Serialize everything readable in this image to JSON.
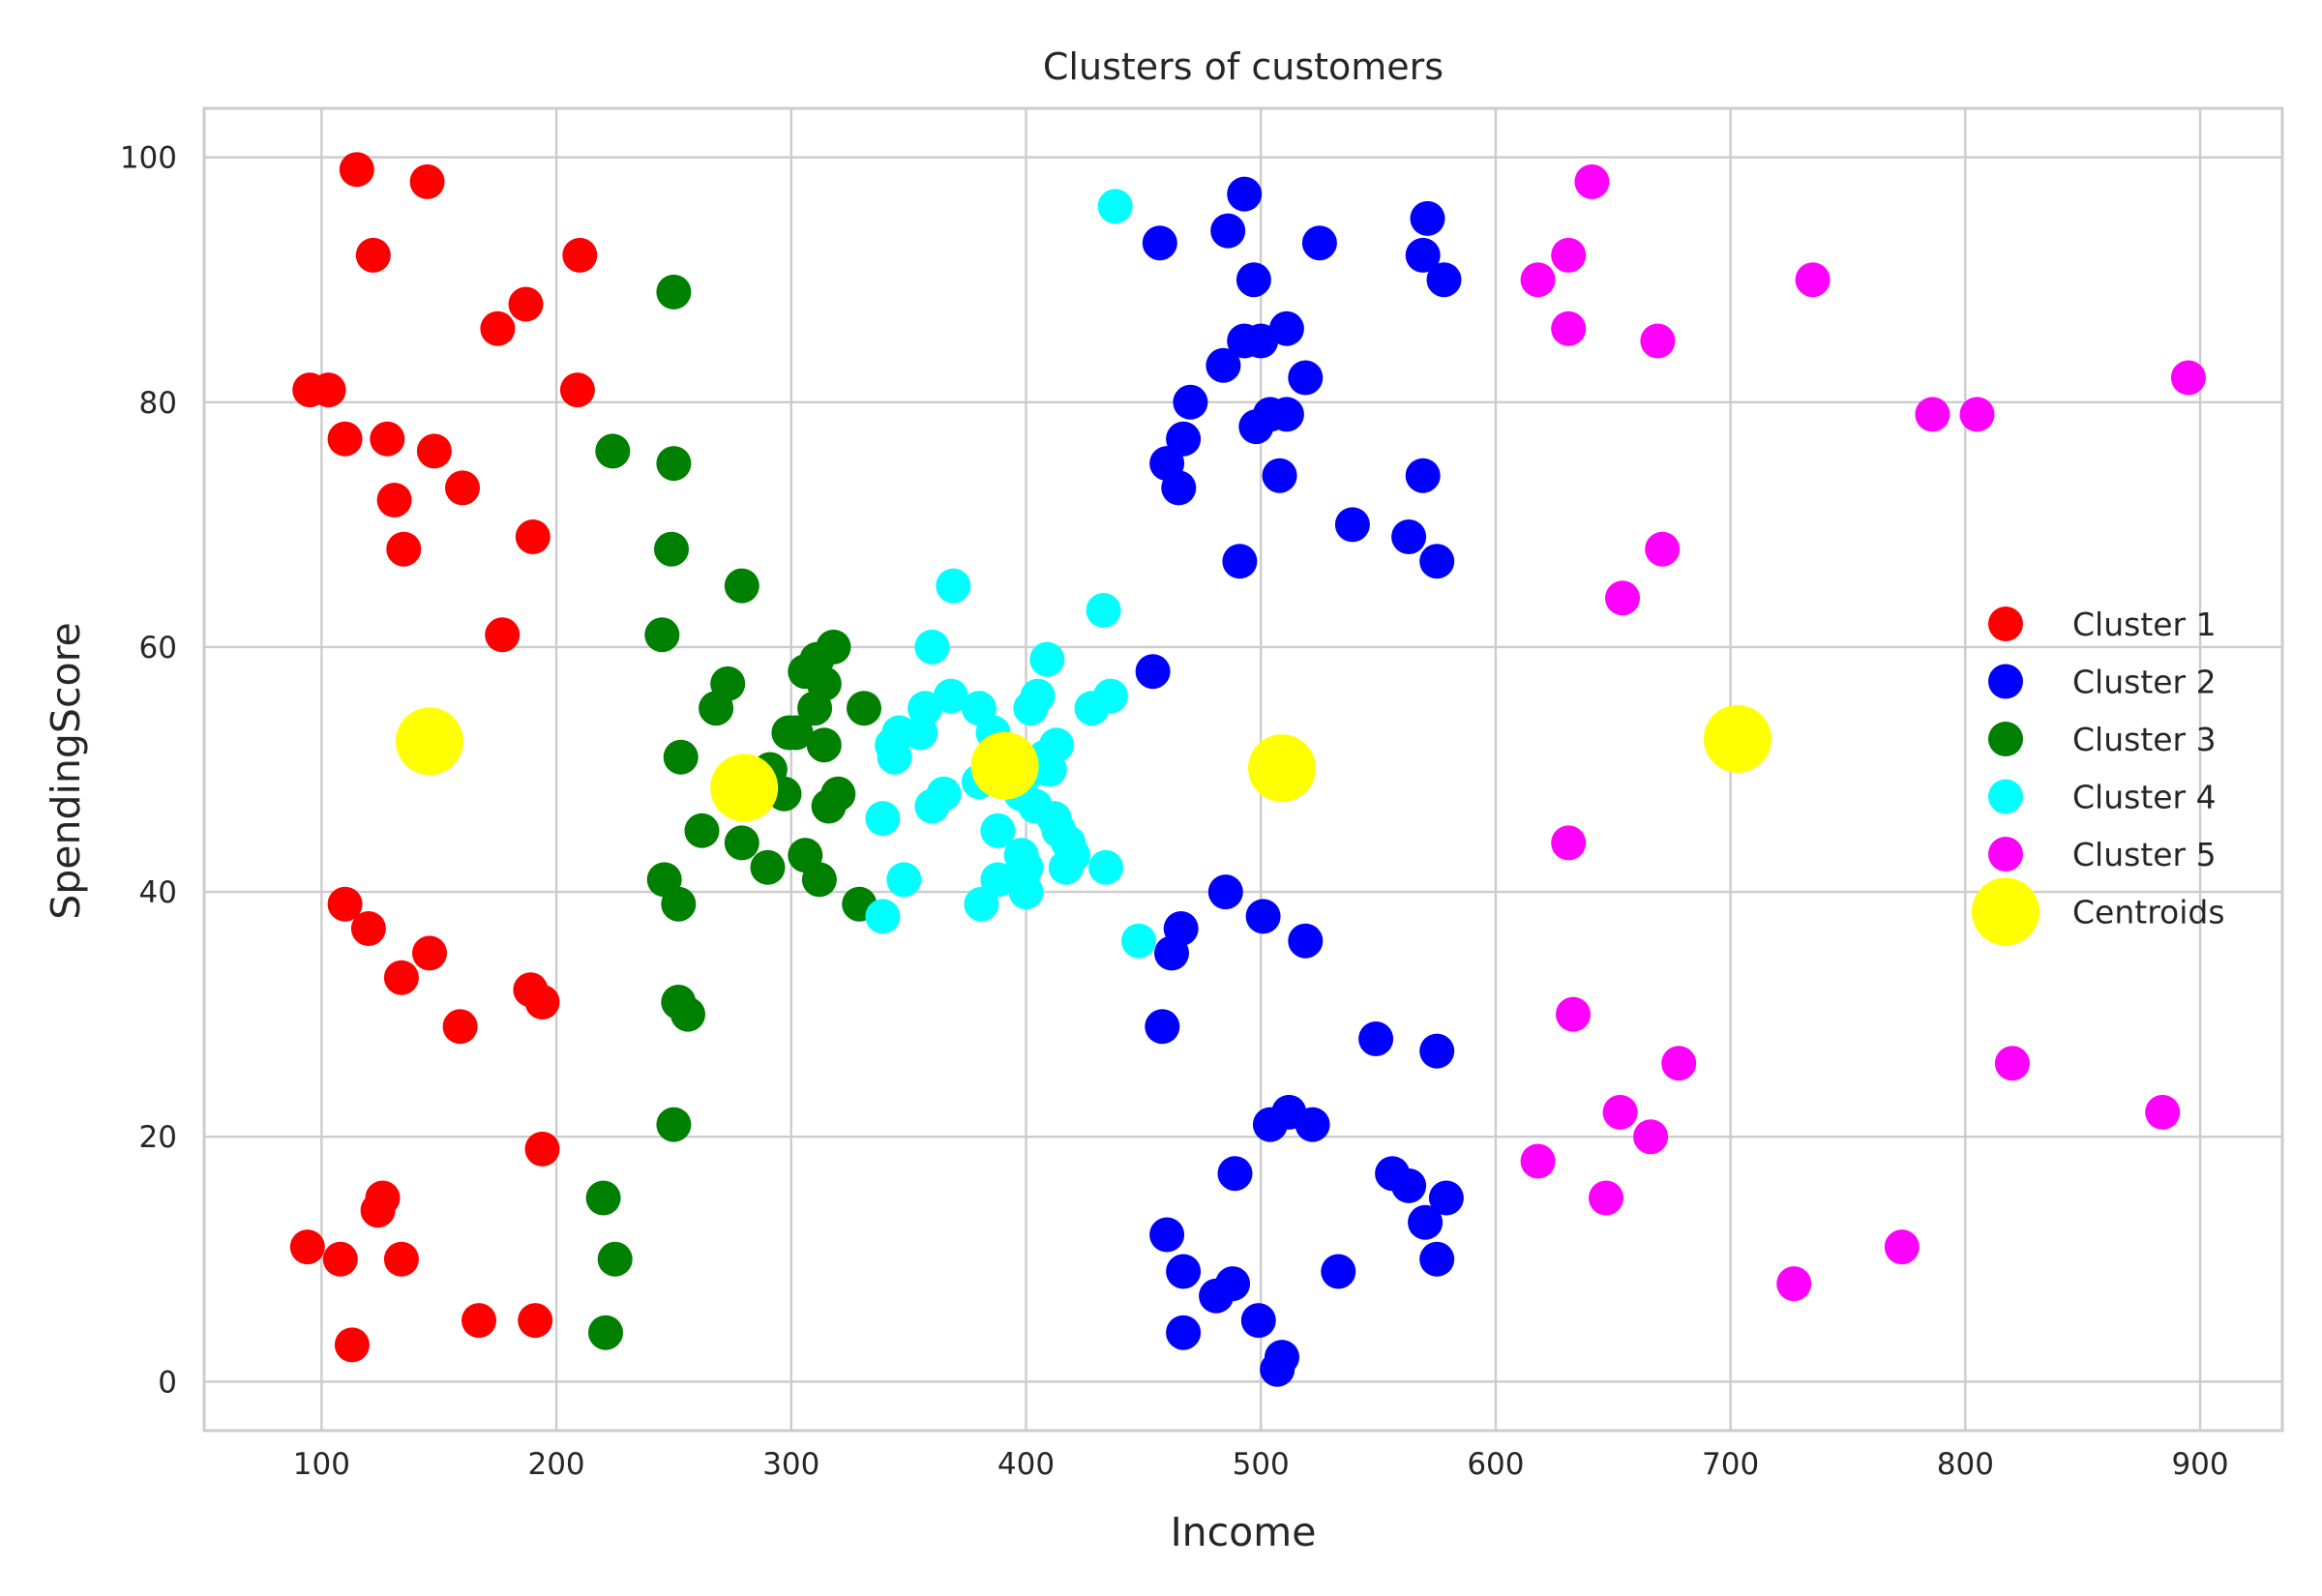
{
  "chart_data": {
    "type": "scatter",
    "title": "Clusters of customers",
    "xlabel": "Income",
    "ylabel": "SpendingScore",
    "xlim": [
      50,
      935
    ],
    "ylim": [
      -4,
      104
    ],
    "xticks": [
      100,
      200,
      300,
      400,
      500,
      600,
      700,
      800,
      900
    ],
    "yticks": [
      0,
      20,
      40,
      60,
      80,
      100
    ],
    "grid": true,
    "legend_position": "right",
    "series": [
      {
        "name": "Cluster 1",
        "color": "#ff0000",
        "points": [
          [
            115,
            99
          ],
          [
            145,
            98
          ],
          [
            122,
            92
          ],
          [
            210,
            92
          ],
          [
            187,
            88
          ],
          [
            175,
            86
          ],
          [
            95,
            81
          ],
          [
            103,
            81
          ],
          [
            209,
            81
          ],
          [
            110,
            77
          ],
          [
            128,
            77
          ],
          [
            148,
            76
          ],
          [
            160,
            73
          ],
          [
            131,
            72
          ],
          [
            190,
            69
          ],
          [
            135,
            68
          ],
          [
            177,
            61
          ],
          [
            110,
            39
          ],
          [
            120,
            37
          ],
          [
            146,
            35
          ],
          [
            134,
            33
          ],
          [
            189,
            32
          ],
          [
            194,
            31
          ],
          [
            159,
            29
          ],
          [
            194,
            19
          ],
          [
            126,
            15
          ],
          [
            124,
            14
          ],
          [
            94,
            11
          ],
          [
            108,
            10
          ],
          [
            134,
            10
          ],
          [
            167,
            5
          ],
          [
            191,
            5
          ],
          [
            113,
            3
          ]
        ]
      },
      {
        "name": "Cluster 2",
        "color": "#0000ff",
        "points": [
          [
            493,
            97
          ],
          [
            571,
            95
          ],
          [
            486,
            94
          ],
          [
            457,
            93
          ],
          [
            525,
            93
          ],
          [
            569,
            92
          ],
          [
            497,
            90
          ],
          [
            578,
            90
          ],
          [
            511,
            86
          ],
          [
            493,
            85
          ],
          [
            500,
            85
          ],
          [
            484,
            83
          ],
          [
            519,
            82
          ],
          [
            470,
            80
          ],
          [
            504,
            79
          ],
          [
            511,
            79
          ],
          [
            498,
            78
          ],
          [
            467,
            77
          ],
          [
            460,
            75
          ],
          [
            465,
            73
          ],
          [
            508,
            74
          ],
          [
            569,
            74
          ],
          [
            539,
            70
          ],
          [
            563,
            69
          ],
          [
            491,
            67
          ],
          [
            575,
            67
          ],
          [
            454,
            58
          ],
          [
            485,
            40
          ],
          [
            501,
            38
          ],
          [
            466,
            37
          ],
          [
            519,
            36
          ],
          [
            462,
            35
          ],
          [
            458,
            29
          ],
          [
            549,
            28
          ],
          [
            575,
            27
          ],
          [
            512,
            22
          ],
          [
            504,
            21
          ],
          [
            522,
            21
          ],
          [
            489,
            17
          ],
          [
            556,
            17
          ],
          [
            563,
            16
          ],
          [
            579,
            15
          ],
          [
            570,
            13
          ],
          [
            460,
            12
          ],
          [
            575,
            10
          ],
          [
            467,
            9
          ],
          [
            533,
            9
          ],
          [
            488,
            8
          ],
          [
            481,
            7
          ],
          [
            499,
            5
          ],
          [
            467,
            4
          ],
          [
            509,
            2
          ],
          [
            507,
            1
          ]
        ]
      },
      {
        "name": "Cluster 3",
        "color": "#008000",
        "points": [
          [
            250,
            89
          ],
          [
            224,
            76
          ],
          [
            250,
            75
          ],
          [
            249,
            68
          ],
          [
            279,
            65
          ],
          [
            245,
            61
          ],
          [
            318,
            60
          ],
          [
            311,
            59
          ],
          [
            306,
            58
          ],
          [
            314,
            57
          ],
          [
            273,
            57
          ],
          [
            268,
            55
          ],
          [
            310,
            55
          ],
          [
            331,
            55
          ],
          [
            299,
            53
          ],
          [
            302,
            53
          ],
          [
            314,
            52
          ],
          [
            253,
            51
          ],
          [
            291,
            50
          ],
          [
            297,
            48
          ],
          [
            320,
            48
          ],
          [
            316,
            47
          ],
          [
            262,
            45
          ],
          [
            279,
            44
          ],
          [
            306,
            43
          ],
          [
            290,
            42
          ],
          [
            312,
            41
          ],
          [
            246,
            41
          ],
          [
            252,
            39
          ],
          [
            329,
            39
          ],
          [
            252,
            31
          ],
          [
            256,
            30
          ],
          [
            250,
            21
          ],
          [
            220,
            15
          ],
          [
            225,
            10
          ],
          [
            221,
            4
          ]
        ]
      },
      {
        "name": "Cluster 4",
        "color": "#00ffff",
        "points": [
          [
            438,
            96
          ],
          [
            369,
            65
          ],
          [
            433,
            63
          ],
          [
            360,
            60
          ],
          [
            409,
            59
          ],
          [
            402,
            55
          ],
          [
            368,
            56
          ],
          [
            405,
            56
          ],
          [
            436,
            56
          ],
          [
            380,
            55
          ],
          [
            357,
            55
          ],
          [
            428,
            55
          ],
          [
            386,
            53
          ],
          [
            346,
            53
          ],
          [
            355,
            53
          ],
          [
            413,
            52
          ],
          [
            343,
            52
          ],
          [
            344,
            51
          ],
          [
            395,
            51
          ],
          [
            408,
            51
          ],
          [
            403,
            50
          ],
          [
            410,
            50
          ],
          [
            380,
            49
          ],
          [
            398,
            48
          ],
          [
            365,
            48
          ],
          [
            360,
            47
          ],
          [
            404,
            47
          ],
          [
            412,
            46
          ],
          [
            339,
            46
          ],
          [
            388,
            45
          ],
          [
            414,
            45
          ],
          [
            418,
            44
          ],
          [
            398,
            43
          ],
          [
            420,
            43
          ],
          [
            417,
            42
          ],
          [
            434,
            42
          ],
          [
            400,
            42
          ],
          [
            388,
            41
          ],
          [
            348,
            41
          ],
          [
            400,
            40
          ],
          [
            381,
            39
          ],
          [
            339,
            38
          ],
          [
            448,
            36
          ]
        ]
      },
      {
        "name": "Cluster 5",
        "color": "#ff00ff",
        "points": [
          [
            641,
            98
          ],
          [
            631,
            92
          ],
          [
            618,
            90
          ],
          [
            735,
            90
          ],
          [
            631,
            86
          ],
          [
            669,
            85
          ],
          [
            895,
            82
          ],
          [
            786,
            79
          ],
          [
            805,
            79
          ],
          [
            671,
            68
          ],
          [
            654,
            64
          ],
          [
            631,
            44
          ],
          [
            633,
            30
          ],
          [
            678,
            26
          ],
          [
            820,
            26
          ],
          [
            653,
            22
          ],
          [
            884,
            22
          ],
          [
            666,
            20
          ],
          [
            618,
            18
          ],
          [
            647,
            15
          ],
          [
            773,
            11
          ],
          [
            727,
            8
          ]
        ]
      },
      {
        "name": "Centroids",
        "color": "#ffff00",
        "points": [
          [
            146,
            52.3
          ],
          [
            280,
            48.5
          ],
          [
            391,
            50.3
          ],
          [
            509,
            50.1
          ],
          [
            703,
            52.5
          ]
        ]
      }
    ]
  }
}
